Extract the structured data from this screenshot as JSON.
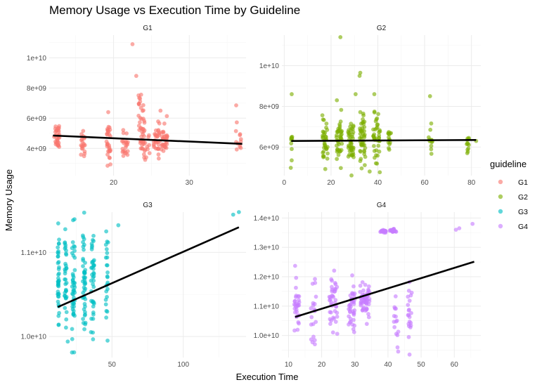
{
  "chart_data": {
    "type": "scatter",
    "title": "Memory Usage vs Execution Time by Guideline",
    "xlabel": "Execution Time",
    "ylabel": "Memory Usage",
    "legend": {
      "title": "guideline",
      "placement": "right",
      "entries": [
        {
          "name": "G1",
          "color": "#F8766D"
        },
        {
          "name": "G2",
          "color": "#7CAE00"
        },
        {
          "name": "G3",
          "color": "#00BFC4"
        },
        {
          "name": "G4",
          "color": "#C77CFF"
        }
      ]
    },
    "panels": [
      {
        "strip": "G1",
        "color": "#F8766D",
        "xlim": [
          11.5,
          37.5
        ],
        "ylim": [
          2200000000,
          11500000000
        ],
        "xticks": [
          {
            "value": 20,
            "label": "20"
          },
          {
            "value": 30,
            "label": "30"
          }
        ],
        "yticks": [
          {
            "value": 4000000000,
            "label": "4e+09"
          },
          {
            "value": 6000000000,
            "label": "6e+09"
          },
          {
            "value": 8000000000,
            "label": "8e+09"
          },
          {
            "value": 10000000000,
            "label": "1e+10"
          }
        ],
        "fit_line": [
          {
            "x": 12,
            "y": 4850000000
          },
          {
            "x": 37,
            "y": 4300000000
          }
        ],
        "clusters": [
          {
            "x": 12.5,
            "xs": 0.35,
            "y": 4900000000,
            "ys": 450000000,
            "n": 32
          },
          {
            "x": 16,
            "xs": 0.3,
            "y": 4400000000,
            "ys": 500000000,
            "n": 20
          },
          {
            "x": 19.3,
            "xs": 0.3,
            "y": 4300000000,
            "ys": 600000000,
            "n": 30
          },
          {
            "x": 21.5,
            "xs": 0.4,
            "y": 4300000000,
            "ys": 550000000,
            "n": 22
          },
          {
            "x": 23.7,
            "xs": 0.4,
            "y": 5600000000,
            "ys": 900000000,
            "n": 35
          },
          {
            "x": 24.2,
            "xs": 0.6,
            "y": 4100000000,
            "ys": 450000000,
            "n": 20
          },
          {
            "x": 25.7,
            "xs": 0.4,
            "y": 4600000000,
            "ys": 550000000,
            "n": 30
          },
          {
            "x": 26.7,
            "xs": 0.4,
            "y": 4700000000,
            "ys": 500000000,
            "n": 30
          },
          {
            "x": 36.5,
            "xs": 0.4,
            "y": 4400000000,
            "ys": 500000000,
            "n": 12
          }
        ],
        "points": [
          {
            "x": 22.5,
            "y": 10900000000
          },
          {
            "x": 23.0,
            "y": 8800000000
          },
          {
            "x": 36.2,
            "y": 6850000000
          },
          {
            "x": 19.3,
            "y": 6400000000
          },
          {
            "x": 23.5,
            "y": 7300000000
          },
          {
            "x": 26.2,
            "y": 6500000000
          }
        ]
      },
      {
        "strip": "G2",
        "color": "#7CAE00",
        "xlim": [
          -1,
          84
        ],
        "ylim": [
          4500000000000000000,
          0
        ],
        "xticks": [
          {
            "value": 0,
            "label": "0"
          },
          {
            "value": 20,
            "label": "20"
          },
          {
            "value": 40,
            "label": "40"
          },
          {
            "value": 60,
            "label": "60"
          },
          {
            "value": 80,
            "label": "80"
          }
        ],
        "yticks": [
          {
            "value": 6000000000,
            "label": "6e+09"
          },
          {
            "value": 8000000000,
            "label": "8e+09"
          },
          {
            "value": 10000000000,
            "label": "1e+10"
          }
        ],
        "fit_line": [
          {
            "x": 3,
            "y": 6300000000
          },
          {
            "x": 82,
            "y": 6350000000
          }
        ],
        "clusters": [
          {
            "x": 3.2,
            "xs": 0.4,
            "y": 6200000000,
            "ys": 350000000,
            "n": 10
          },
          {
            "x": 17.5,
            "xs": 1.2,
            "y": 6200000000,
            "ys": 500000000,
            "n": 35
          },
          {
            "x": 23.5,
            "xs": 1.2,
            "y": 6300000000,
            "ys": 550000000,
            "n": 40
          },
          {
            "x": 28.5,
            "xs": 1.2,
            "y": 6200000000,
            "ys": 550000000,
            "n": 45
          },
          {
            "x": 33.5,
            "xs": 1.2,
            "y": 6400000000,
            "ys": 600000000,
            "n": 45
          },
          {
            "x": 39.5,
            "xs": 1.5,
            "y": 6300000000,
            "ys": 600000000,
            "n": 40
          },
          {
            "x": 45,
            "xs": 0.6,
            "y": 6400000000,
            "ys": 500000000,
            "n": 14
          },
          {
            "x": 62.5,
            "xs": 0.8,
            "y": 6300000000,
            "ys": 450000000,
            "n": 12
          },
          {
            "x": 78.5,
            "xs": 0.6,
            "y": 6200000000,
            "ys": 450000000,
            "n": 12
          }
        ],
        "points": [
          {
            "x": 24,
            "y": 11400000000
          },
          {
            "x": 32.5,
            "y": 9650000000
          },
          {
            "x": 32.2,
            "y": 9500000000
          },
          {
            "x": 3.2,
            "y": 8600000000
          },
          {
            "x": 30.5,
            "y": 8600000000
          },
          {
            "x": 38.5,
            "y": 8600000000
          },
          {
            "x": 62.3,
            "y": 8500000000
          },
          {
            "x": 22.5,
            "y": 8300000000
          },
          {
            "x": 36.5,
            "y": 4800000000
          },
          {
            "x": 82,
            "y": 6300000000
          }
        ]
      },
      {
        "strip": "G3",
        "color": "#00BFC4",
        "xlim": [
          6,
          144
        ],
        "ylim": [
          9750000000,
          11480000000
        ],
        "xticks": [
          {
            "value": 50,
            "label": "50"
          },
          {
            "value": 100,
            "label": "100"
          }
        ],
        "yticks": [
          {
            "value": 10000000000,
            "label": "1.0e+10"
          },
          {
            "value": 11000000000,
            "label": "1.1e+10"
          }
        ],
        "fit_line": [
          {
            "x": 12,
            "y": 10350000000
          },
          {
            "x": 139,
            "y": 11300000000
          }
        ],
        "clusters": [
          {
            "x": 12.5,
            "xs": 0.5,
            "y": 10650000000,
            "ys": 330000000,
            "n": 40
          },
          {
            "x": 17.5,
            "xs": 0.7,
            "y": 10600000000,
            "ys": 330000000,
            "n": 35
          },
          {
            "x": 23,
            "xs": 1.0,
            "y": 10600000000,
            "ys": 330000000,
            "n": 45
          },
          {
            "x": 30.5,
            "xs": 1.0,
            "y": 10650000000,
            "ys": 330000000,
            "n": 45
          },
          {
            "x": 36.5,
            "xs": 1.2,
            "y": 10650000000,
            "ys": 330000000,
            "n": 40
          },
          {
            "x": 46.5,
            "xs": 0.8,
            "y": 10750000000,
            "ys": 330000000,
            "n": 25
          },
          {
            "x": 54.5,
            "xs": 0.3,
            "y": 11330000000,
            "ys": 20000000,
            "n": 1
          }
        ],
        "points": [
          {
            "x": 135,
            "y": 11450000000
          },
          {
            "x": 139,
            "y": 11480000000
          },
          {
            "x": 22,
            "y": 9810000000
          },
          {
            "x": 19,
            "y": 9940000000
          }
        ]
      },
      {
        "strip": "G4",
        "color": "#C77CFF",
        "xlim": [
          8,
          68
        ],
        "ylim": [
          9250000000,
          14200000000
        ],
        "xticks": [
          {
            "value": 10,
            "label": "10"
          },
          {
            "value": 20,
            "label": "20"
          },
          {
            "value": 30,
            "label": "30"
          },
          {
            "value": 40,
            "label": "40"
          },
          {
            "value": 50,
            "label": "50"
          },
          {
            "value": 60,
            "label": "60"
          }
        ],
        "yticks": [
          {
            "value": 10000000000,
            "label": "1.0e+10"
          },
          {
            "value": 11000000000,
            "label": "1.1e+10"
          },
          {
            "value": 12000000000,
            "label": "1.2e+10"
          },
          {
            "value": 13000000000,
            "label": "1.3e+10"
          },
          {
            "value": 14000000000,
            "label": "1.4e+10"
          }
        ],
        "fit_line": [
          {
            "x": 12,
            "y": 10630000000
          },
          {
            "x": 66,
            "y": 12510000000
          }
        ],
        "clusters": [
          {
            "x": 12.5,
            "xs": 0.8,
            "y": 10950000000,
            "ys": 450000000,
            "n": 30
          },
          {
            "x": 17.5,
            "xs": 0.8,
            "y": 10750000000,
            "ys": 500000000,
            "n": 20
          },
          {
            "x": 23.5,
            "xs": 1.2,
            "y": 11100000000,
            "ys": 500000000,
            "n": 40
          },
          {
            "x": 29,
            "xs": 1.0,
            "y": 10900000000,
            "ys": 450000000,
            "n": 40
          },
          {
            "x": 33,
            "xs": 1.5,
            "y": 11250000000,
            "ys": 300000000,
            "n": 55
          },
          {
            "x": 38.5,
            "xs": 0.8,
            "y": 13550000000,
            "ys": 25000000,
            "n": 25
          },
          {
            "x": 41.5,
            "xs": 1.0,
            "y": 13570000000,
            "ys": 25000000,
            "n": 25
          },
          {
            "x": 42.5,
            "xs": 0.8,
            "y": 10500000000,
            "ys": 400000000,
            "n": 15
          },
          {
            "x": 46.5,
            "xs": 0.7,
            "y": 10900000000,
            "ys": 500000000,
            "n": 20
          }
        ],
        "points": [
          {
            "x": 60.5,
            "y": 13600000000
          },
          {
            "x": 61.5,
            "y": 13650000000
          },
          {
            "x": 65.5,
            "y": 13800000000
          },
          {
            "x": 46.5,
            "y": 9350000000
          }
        ]
      }
    ]
  }
}
